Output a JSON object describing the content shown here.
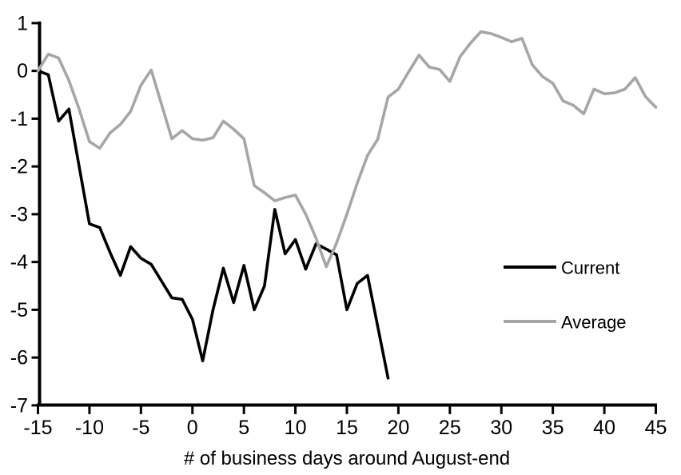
{
  "chart_data": {
    "type": "line",
    "title": "",
    "xlabel": "# of business days around August-end",
    "ylabel": "",
    "xlim": [
      -15,
      45
    ],
    "ylim": [
      -7,
      1
    ],
    "x_ticks": [
      -15,
      -10,
      -5,
      0,
      5,
      10,
      15,
      20,
      25,
      30,
      35,
      40,
      45
    ],
    "y_ticks": [
      1,
      0,
      -1,
      -2,
      -3,
      -4,
      -5,
      -6,
      -7
    ],
    "grid": false,
    "legend_position": "right-middle",
    "axis_color": "#000000",
    "background_color": "#ffffff",
    "series": [
      {
        "name": "Current",
        "color": "#000000",
        "x": [
          -15,
          -14,
          -13,
          -12,
          -11,
          -10,
          -9,
          -8,
          -7,
          -6,
          -5,
          -4,
          -3,
          -2,
          -1,
          0,
          1,
          2,
          3,
          4,
          5,
          6,
          7,
          8,
          9,
          10,
          11,
          12,
          13,
          14,
          15,
          16,
          17,
          18,
          19
        ],
        "values": [
          0,
          -0.08,
          -1.05,
          -0.8,
          -2.0,
          -3.2,
          -3.28,
          -3.8,
          -4.28,
          -3.68,
          -3.92,
          -4.05,
          -4.4,
          -4.75,
          -4.78,
          -5.2,
          -6.07,
          -5.0,
          -4.13,
          -4.85,
          -4.07,
          -5.0,
          -4.5,
          -2.9,
          -3.83,
          -3.53,
          -4.15,
          -3.62,
          -3.73,
          -3.85,
          -5.0,
          -4.45,
          -4.28,
          -5.35,
          -6.43
        ]
      },
      {
        "name": "Average",
        "color": "#a6a6a6",
        "x": [
          -15,
          -14,
          -13,
          -12,
          -11,
          -10,
          -9,
          -8,
          -7,
          -6,
          -5,
          -4,
          -3,
          -2,
          -1,
          0,
          1,
          2,
          3,
          4,
          5,
          6,
          7,
          8,
          9,
          10,
          11,
          12,
          13,
          14,
          15,
          16,
          17,
          18,
          19,
          20,
          21,
          22,
          23,
          24,
          25,
          26,
          27,
          28,
          29,
          30,
          31,
          32,
          33,
          34,
          35,
          36,
          37,
          38,
          39,
          40,
          41,
          42,
          43,
          44,
          45
        ],
        "values": [
          0,
          0.35,
          0.27,
          -0.2,
          -0.8,
          -1.48,
          -1.62,
          -1.3,
          -1.12,
          -0.85,
          -0.3,
          0.02,
          -0.7,
          -1.42,
          -1.25,
          -1.42,
          -1.45,
          -1.4,
          -1.05,
          -1.22,
          -1.42,
          -2.4,
          -2.55,
          -2.72,
          -2.65,
          -2.6,
          -3.0,
          -3.5,
          -4.1,
          -3.6,
          -3.0,
          -2.35,
          -1.77,
          -1.43,
          -0.55,
          -0.38,
          -0.02,
          0.33,
          0.08,
          0.03,
          -0.22,
          0.3,
          0.58,
          0.82,
          0.78,
          0.7,
          0.61,
          0.68,
          0.13,
          -0.12,
          -0.26,
          -0.63,
          -0.72,
          -0.9,
          -0.38,
          -0.48,
          -0.46,
          -0.38,
          -0.14,
          -0.54,
          -0.76
        ]
      }
    ]
  }
}
